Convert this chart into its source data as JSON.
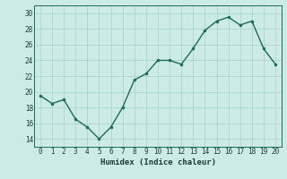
{
  "x": [
    0,
    1,
    2,
    3,
    4,
    5,
    6,
    7,
    8,
    9,
    10,
    11,
    12,
    13,
    14,
    15,
    16,
    17,
    18,
    19,
    20
  ],
  "y": [
    19.5,
    18.5,
    19.0,
    16.5,
    15.5,
    14.0,
    15.5,
    18.0,
    21.5,
    22.3,
    24.0,
    24.0,
    23.5,
    25.5,
    27.8,
    29.0,
    29.5,
    28.5,
    29.0,
    25.5,
    23.5
  ],
  "line_color": "#1a6b5a",
  "marker_color": "#1a6b5a",
  "bg_color": "#cceae8",
  "grid_major_color": "#aad4d0",
  "xlabel": "Humidex (Indice chaleur)",
  "ylim": [
    13.0,
    31.0
  ],
  "xlim": [
    -0.5,
    20.5
  ],
  "yticks": [
    14,
    16,
    18,
    20,
    22,
    24,
    26,
    28,
    30
  ],
  "xticks": [
    0,
    1,
    2,
    3,
    4,
    5,
    6,
    7,
    8,
    9,
    10,
    11,
    12,
    13,
    14,
    15,
    16,
    17,
    18,
    19,
    20
  ],
  "xlabel_fontsize": 6.5,
  "tick_fontsize": 5.5,
  "linewidth": 1.0,
  "markersize": 3
}
